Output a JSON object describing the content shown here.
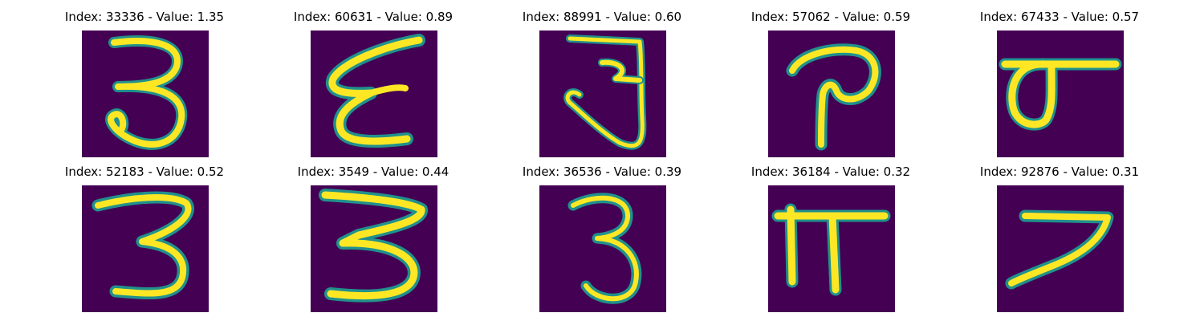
{
  "figure": {
    "panels": [
      {
        "title": "Index: 33336 - Value: 1.35",
        "glyph": "three-a"
      },
      {
        "title": "Index: 60631 - Value: 0.89",
        "glyph": "zigzag-e"
      },
      {
        "title": "Index: 88991 - Value: 0.60",
        "glyph": "ja-hook"
      },
      {
        "title": "Index: 57062 - Value: 0.59",
        "glyph": "pa-curl"
      },
      {
        "title": "Index: 67433 - Value: 0.57",
        "glyph": "sigma-like"
      },
      {
        "title": "Index: 52183 - Value: 0.52",
        "glyph": "three-b"
      },
      {
        "title": "Index: 3549 - Value: 0.44",
        "glyph": "three-wide"
      },
      {
        "title": "Index: 36536 - Value: 0.39",
        "glyph": "three-c"
      },
      {
        "title": "Index: 36184 - Value: 0.32",
        "glyph": "pi"
      },
      {
        "title": "Index: 92876 - Value: 0.31",
        "glyph": "seven"
      }
    ],
    "colors": {
      "background": "#440154",
      "stroke_outer": "#21918c",
      "stroke_mid": "#5ec962",
      "stroke_core": "#fde725"
    }
  }
}
